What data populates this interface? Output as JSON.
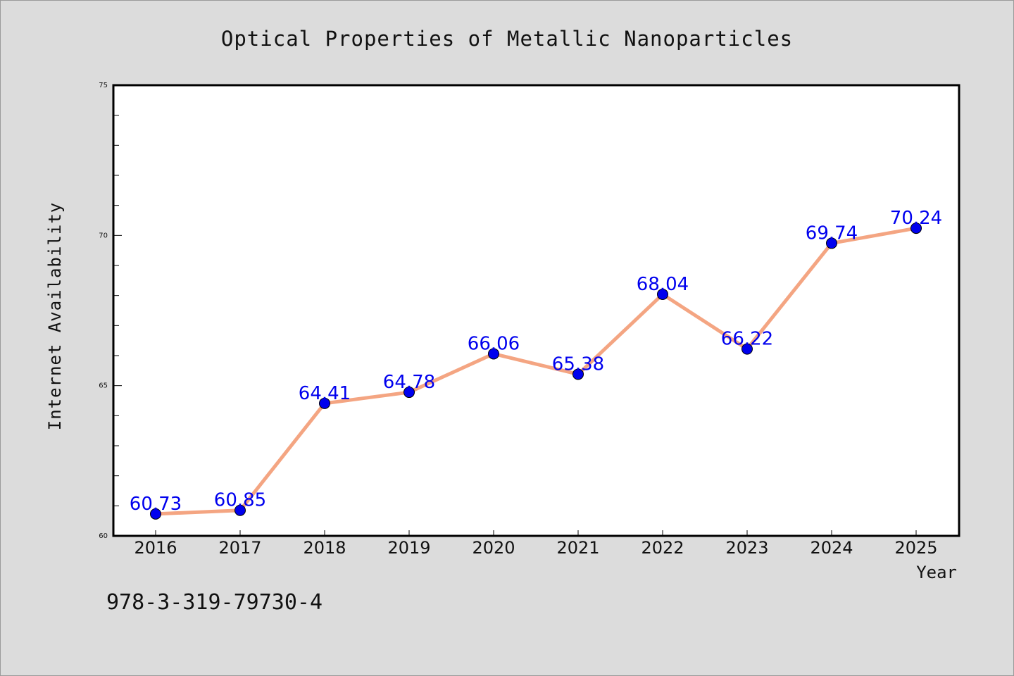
{
  "chart_data": {
    "type": "line",
    "title": "Optical Properties of Metallic Nanoparticles",
    "xlabel": "Year",
    "ylabel": "Internet Availability",
    "categories": [
      "2016",
      "2017",
      "2018",
      "2019",
      "2020",
      "2021",
      "2022",
      "2023",
      "2024",
      "2025"
    ],
    "series": [
      {
        "values": [
          60.73,
          60.85,
          64.41,
          64.78,
          66.06,
          65.38,
          68.04,
          66.22,
          69.74,
          70.24
        ]
      }
    ],
    "data_labels": [
      "60.73",
      "60.85",
      "64.41",
      "64.78",
      "66.06",
      "65.38",
      "68.04",
      "66.22",
      "69.74",
      "70.24"
    ],
    "ylim": [
      60,
      75
    ],
    "yticks": [
      "60",
      "65",
      "70",
      "75"
    ],
    "grid": false,
    "legend": "none",
    "colors": {
      "line": "#f4a582",
      "marker": "#0000ee",
      "data_label": "#0000ee",
      "background": "#dcdcdc",
      "plot_background": "#ffffff"
    }
  },
  "footer": {
    "text": "978-3-319-79730-4"
  }
}
